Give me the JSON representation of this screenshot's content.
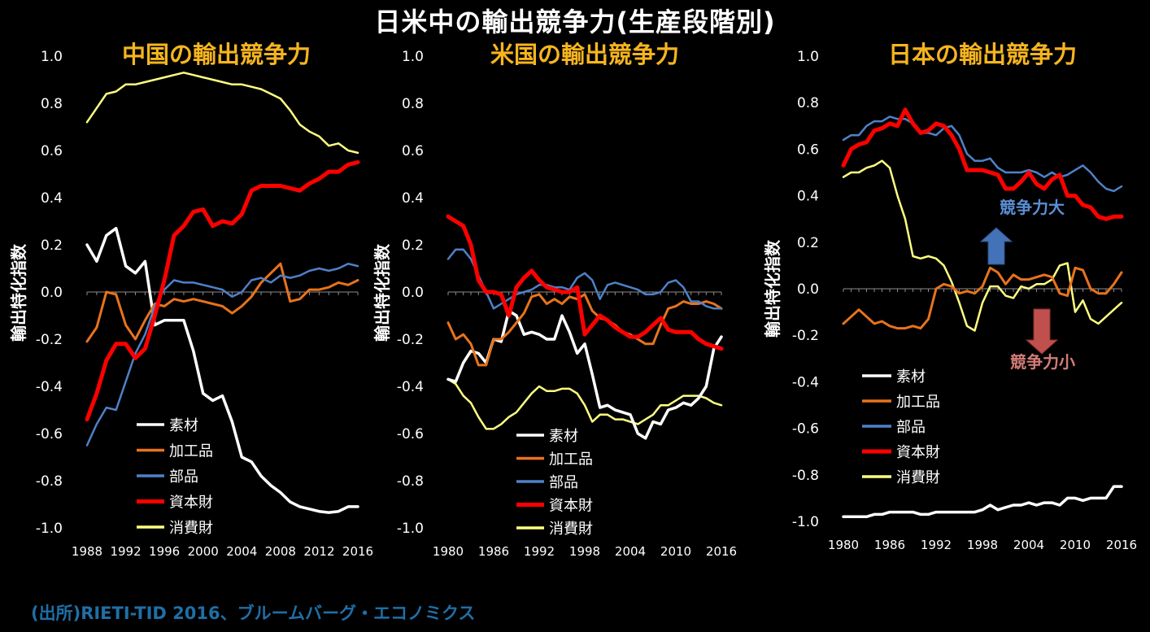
{
  "main_title": "日米中の輸出競争力(生産段階別)",
  "source": "(出所)RIETI-TID 2016、ブルームバーグ・エコノミクス",
  "colors": {
    "素材": "#ffffff",
    "加工品": "#e8731c",
    "部品": "#4f81c8",
    "資本財": "#ff0000",
    "消費財": "#ffff80",
    "title": "#f6b51f"
  },
  "chart_data": [
    {
      "type": "line",
      "title": "中国の輸出競争力",
      "ylabel": "輸出特化指数",
      "xlabel": "",
      "ylim": [
        -1.0,
        1.0
      ],
      "yticks": [
        "1.0",
        "0.8",
        "0.6",
        "0.4",
        "0.2",
        "0.0",
        "-0.2",
        "-0.4",
        "-0.6",
        "-0.8",
        "-1.0"
      ],
      "xticks": [
        "1988",
        "1992",
        "1996",
        "2000",
        "2004",
        "2008",
        "2012",
        "2016"
      ],
      "x": [
        1988,
        1989,
        1990,
        1991,
        1992,
        1993,
        1994,
        1995,
        1996,
        1997,
        1998,
        1999,
        2000,
        2001,
        2002,
        2003,
        2004,
        2005,
        2006,
        2007,
        2008,
        2009,
        2010,
        2011,
        2012,
        2013,
        2014,
        2015,
        2016
      ],
      "legend": [
        "素材",
        "加工品",
        "部品",
        "資本財",
        "消費財"
      ],
      "annotations": [],
      "series": [
        {
          "name": "素材",
          "values": [
            0.2,
            0.13,
            0.24,
            0.27,
            0.11,
            0.08,
            0.13,
            -0.14,
            -0.12,
            -0.12,
            -0.12,
            -0.25,
            -0.43,
            -0.46,
            -0.44,
            -0.55,
            -0.7,
            -0.72,
            -0.78,
            -0.82,
            -0.85,
            -0.89,
            -0.91,
            -0.92,
            -0.93,
            -0.935,
            -0.93,
            -0.91,
            -0.91
          ]
        },
        {
          "name": "加工品",
          "values": [
            -0.21,
            -0.15,
            0.0,
            -0.01,
            -0.14,
            -0.2,
            -0.12,
            -0.05,
            -0.06,
            -0.03,
            -0.04,
            -0.03,
            -0.04,
            -0.05,
            -0.06,
            -0.09,
            -0.06,
            -0.02,
            0.04,
            0.08,
            0.12,
            -0.04,
            -0.03,
            0.01,
            0.01,
            0.02,
            0.04,
            0.03,
            0.05
          ]
        },
        {
          "name": "部品",
          "values": [
            -0.65,
            -0.56,
            -0.49,
            -0.5,
            -0.38,
            -0.26,
            -0.18,
            -0.06,
            0.01,
            0.05,
            0.04,
            0.04,
            0.03,
            0.02,
            0.01,
            -0.02,
            0.0,
            0.05,
            0.06,
            0.04,
            0.07,
            0.06,
            0.07,
            0.09,
            0.1,
            0.09,
            0.1,
            0.12,
            0.11
          ]
        },
        {
          "name": "資本財",
          "values": [
            -0.54,
            -0.43,
            -0.29,
            -0.22,
            -0.22,
            -0.28,
            -0.24,
            -0.1,
            0.05,
            0.24,
            0.28,
            0.34,
            0.35,
            0.28,
            0.3,
            0.29,
            0.33,
            0.43,
            0.45,
            0.45,
            0.45,
            0.44,
            0.43,
            0.46,
            0.48,
            0.51,
            0.51,
            0.54,
            0.55
          ]
        },
        {
          "name": "消費財",
          "values": [
            0.72,
            0.78,
            0.84,
            0.85,
            0.88,
            0.88,
            0.89,
            0.9,
            0.91,
            0.92,
            0.93,
            0.92,
            0.91,
            0.9,
            0.89,
            0.88,
            0.88,
            0.87,
            0.86,
            0.84,
            0.82,
            0.77,
            0.71,
            0.68,
            0.66,
            0.62,
            0.63,
            0.6,
            0.59
          ]
        }
      ]
    },
    {
      "type": "line",
      "title": "米国の輸出競争力",
      "ylabel": "輸出特化指数",
      "xlabel": "",
      "ylim": [
        -1.0,
        1.0
      ],
      "yticks": [
        "1.0",
        "0.8",
        "0.6",
        "0.4",
        "0.2",
        "0.0",
        "-0.2",
        "-0.4",
        "-0.6",
        "-0.8",
        "-1.0"
      ],
      "xticks": [
        "1980",
        "1986",
        "1992",
        "1998",
        "2004",
        "2010",
        "2016"
      ],
      "x": [
        1980,
        1981,
        1982,
        1983,
        1984,
        1985,
        1986,
        1987,
        1988,
        1989,
        1990,
        1991,
        1992,
        1993,
        1994,
        1995,
        1996,
        1997,
        1998,
        1999,
        2000,
        2001,
        2002,
        2003,
        2004,
        2005,
        2006,
        2007,
        2008,
        2009,
        2010,
        2011,
        2012,
        2013,
        2014,
        2015,
        2016
      ],
      "legend": [
        "素材",
        "加工品",
        "部品",
        "資本財",
        "消費財"
      ],
      "annotations": [],
      "series": [
        {
          "name": "素材",
          "values": [
            -0.37,
            -0.38,
            -0.3,
            -0.25,
            -0.26,
            -0.3,
            -0.2,
            -0.21,
            -0.08,
            -0.1,
            -0.18,
            -0.17,
            -0.18,
            -0.2,
            -0.2,
            -0.1,
            -0.17,
            -0.26,
            -0.22,
            -0.35,
            -0.49,
            -0.48,
            -0.5,
            -0.51,
            -0.52,
            -0.6,
            -0.62,
            -0.55,
            -0.56,
            -0.5,
            -0.49,
            -0.47,
            -0.48,
            -0.45,
            -0.4,
            -0.24,
            -0.19
          ]
        },
        {
          "name": "加工品",
          "values": [
            -0.13,
            -0.2,
            -0.18,
            -0.22,
            -0.31,
            -0.31,
            -0.2,
            -0.2,
            -0.17,
            -0.13,
            -0.09,
            -0.02,
            -0.01,
            -0.05,
            -0.03,
            -0.05,
            -0.02,
            -0.03,
            -0.01,
            -0.08,
            -0.11,
            -0.12,
            -0.14,
            -0.17,
            -0.18,
            -0.2,
            -0.22,
            -0.22,
            -0.14,
            -0.07,
            -0.06,
            -0.04,
            -0.05,
            -0.05,
            -0.04,
            -0.05,
            -0.07
          ]
        },
        {
          "name": "部品",
          "values": [
            0.14,
            0.18,
            0.18,
            0.14,
            0.07,
            0.0,
            -0.07,
            -0.05,
            -0.03,
            -0.01,
            0.0,
            0.01,
            0.03,
            0.03,
            0.02,
            0.02,
            0.01,
            0.06,
            0.08,
            0.05,
            -0.03,
            0.03,
            0.04,
            0.03,
            0.02,
            0.01,
            -0.01,
            -0.01,
            0.0,
            0.04,
            0.05,
            0.02,
            -0.04,
            -0.04,
            -0.06,
            -0.07,
            -0.07
          ]
        },
        {
          "name": "資本財",
          "values": [
            0.32,
            0.3,
            0.28,
            0.2,
            0.05,
            0.0,
            0.0,
            -0.01,
            -0.1,
            0.02,
            0.06,
            0.09,
            0.05,
            0.02,
            0.01,
            0.0,
            0.0,
            0.02,
            -0.18,
            -0.14,
            -0.1,
            -0.12,
            -0.15,
            -0.17,
            -0.19,
            -0.19,
            -0.17,
            -0.14,
            -0.11,
            -0.16,
            -0.17,
            -0.17,
            -0.17,
            -0.2,
            -0.22,
            -0.23,
            -0.24
          ]
        },
        {
          "name": "消費財",
          "values": [
            -0.37,
            -0.39,
            -0.44,
            -0.47,
            -0.53,
            -0.58,
            -0.58,
            -0.56,
            -0.53,
            -0.51,
            -0.47,
            -0.43,
            -0.4,
            -0.42,
            -0.42,
            -0.41,
            -0.41,
            -0.43,
            -0.48,
            -0.55,
            -0.52,
            -0.52,
            -0.54,
            -0.54,
            -0.55,
            -0.56,
            -0.54,
            -0.52,
            -0.48,
            -0.48,
            -0.46,
            -0.44,
            -0.44,
            -0.44,
            -0.45,
            -0.47,
            -0.48
          ]
        }
      ]
    },
    {
      "type": "line",
      "title": "日本の輸出競争力",
      "ylabel": "輸出特化指数",
      "xlabel": "",
      "ylim": [
        -1.0,
        1.0
      ],
      "yticks": [
        "1.0",
        "0.8",
        "0.6",
        "0.4",
        "0.2",
        "0.0",
        "-0.2",
        "-0.4",
        "-0.6",
        "-0.8",
        "-1.0"
      ],
      "xticks": [
        "1980",
        "1986",
        "1992",
        "1998",
        "2004",
        "2010",
        "2016"
      ],
      "x": [
        1980,
        1981,
        1982,
        1983,
        1984,
        1985,
        1986,
        1987,
        1988,
        1989,
        1990,
        1991,
        1992,
        1993,
        1994,
        1995,
        1996,
        1997,
        1998,
        1999,
        2000,
        2001,
        2002,
        2003,
        2004,
        2005,
        2006,
        2007,
        2008,
        2009,
        2010,
        2011,
        2012,
        2013,
        2014,
        2015,
        2016
      ],
      "legend": [
        "素材",
        "加工品",
        "部品",
        "資本財",
        "消費財"
      ],
      "annotations": [
        "競争力大",
        "競争力小"
      ],
      "series": [
        {
          "name": "素材",
          "values": [
            -0.98,
            -0.98,
            -0.98,
            -0.98,
            -0.97,
            -0.97,
            -0.96,
            -0.96,
            -0.96,
            -0.96,
            -0.97,
            -0.97,
            -0.96,
            -0.96,
            -0.96,
            -0.96,
            -0.96,
            -0.96,
            -0.95,
            -0.93,
            -0.95,
            -0.94,
            -0.93,
            -0.93,
            -0.92,
            -0.93,
            -0.92,
            -0.92,
            -0.93,
            -0.9,
            -0.9,
            -0.91,
            -0.9,
            -0.9,
            -0.9,
            -0.85,
            -0.85
          ]
        },
        {
          "name": "加工品",
          "values": [
            -0.15,
            -0.12,
            -0.09,
            -0.12,
            -0.15,
            -0.14,
            -0.16,
            -0.17,
            -0.17,
            -0.16,
            -0.17,
            -0.13,
            0.0,
            0.02,
            0.01,
            -0.02,
            -0.01,
            -0.02,
            0.01,
            0.09,
            0.07,
            0.02,
            0.06,
            0.04,
            0.04,
            0.05,
            0.06,
            0.05,
            -0.02,
            -0.03,
            0.09,
            0.08,
            0.0,
            -0.02,
            -0.02,
            0.02,
            0.07
          ]
        },
        {
          "name": "部品",
          "values": [
            0.64,
            0.66,
            0.66,
            0.7,
            0.72,
            0.72,
            0.74,
            0.73,
            0.73,
            0.71,
            0.67,
            0.67,
            0.66,
            0.69,
            0.7,
            0.66,
            0.58,
            0.55,
            0.55,
            0.56,
            0.52,
            0.5,
            0.5,
            0.5,
            0.51,
            0.5,
            0.48,
            0.5,
            0.48,
            0.49,
            0.51,
            0.53,
            0.5,
            0.46,
            0.43,
            0.42,
            0.44
          ]
        },
        {
          "name": "資本財",
          "values": [
            0.53,
            0.6,
            0.62,
            0.63,
            0.68,
            0.69,
            0.71,
            0.7,
            0.77,
            0.71,
            0.67,
            0.68,
            0.71,
            0.7,
            0.66,
            0.6,
            0.51,
            0.51,
            0.51,
            0.5,
            0.49,
            0.43,
            0.43,
            0.46,
            0.5,
            0.45,
            0.43,
            0.47,
            0.49,
            0.4,
            0.4,
            0.36,
            0.35,
            0.31,
            0.3,
            0.31,
            0.31
          ]
        },
        {
          "name": "消費財",
          "values": [
            0.48,
            0.5,
            0.5,
            0.52,
            0.53,
            0.55,
            0.52,
            0.4,
            0.3,
            0.14,
            0.13,
            0.14,
            0.13,
            0.1,
            0.03,
            -0.06,
            -0.16,
            -0.18,
            -0.06,
            0.01,
            0.01,
            -0.03,
            -0.04,
            0.01,
            0.0,
            0.02,
            0.02,
            0.04,
            0.1,
            0.11,
            -0.1,
            -0.05,
            -0.13,
            -0.15,
            -0.12,
            -0.09,
            -0.06
          ]
        }
      ]
    }
  ]
}
